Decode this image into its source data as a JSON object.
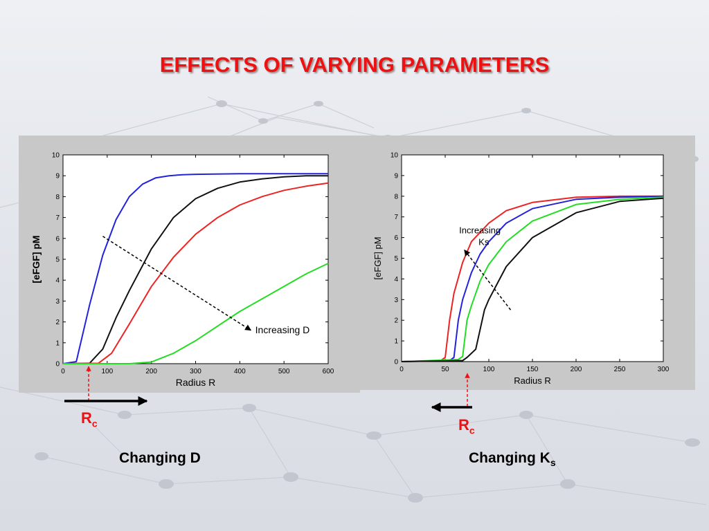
{
  "slide": {
    "title": "EFFECTS OF VARYING PARAMETERS",
    "colors": {
      "title": "#ee1111",
      "rc_label": "#ee1111",
      "panel_bg": "#c8c8c8"
    },
    "rc_left": {
      "main": "R",
      "sub": "c"
    },
    "rc_right": {
      "main": "R",
      "sub": "c"
    },
    "caption_left": "Changing D",
    "caption_right": {
      "main": "Changing K",
      "sub": "s"
    }
  },
  "chart_data": [
    {
      "type": "line",
      "xlabel": "Radius R",
      "ylabel": "[eFGF] pM",
      "xlim": [
        0,
        600
      ],
      "ylim": [
        0,
        10
      ],
      "xticks": [
        0,
        100,
        200,
        300,
        400,
        500,
        600
      ],
      "yticks": [
        0,
        1,
        2,
        3,
        4,
        5,
        6,
        7,
        8,
        9,
        10
      ],
      "grid": false,
      "annotation": {
        "text": "Increasing D",
        "from": [
          90,
          6.1
        ],
        "to": [
          425,
          1.6
        ],
        "text_at": [
          435,
          1.45
        ]
      },
      "series": [
        {
          "color": "#2222dd",
          "x": [
            0,
            30,
            60,
            90,
            120,
            150,
            180,
            210,
            240,
            270,
            300,
            400,
            500,
            600
          ],
          "y": [
            0,
            0.1,
            2.8,
            5.2,
            6.9,
            8.0,
            8.6,
            8.9,
            9.0,
            9.05,
            9.07,
            9.1,
            9.1,
            9.1
          ]
        },
        {
          "color": "#111111",
          "x": [
            0,
            60,
            90,
            120,
            150,
            200,
            250,
            300,
            350,
            400,
            450,
            500,
            550,
            600
          ],
          "y": [
            0,
            0.02,
            0.7,
            2.2,
            3.5,
            5.5,
            7.0,
            7.9,
            8.4,
            8.7,
            8.85,
            8.95,
            9.0,
            9.0
          ]
        },
        {
          "color": "#ee2222",
          "x": [
            0,
            80,
            110,
            150,
            200,
            250,
            300,
            350,
            400,
            450,
            500,
            550,
            600
          ],
          "y": [
            0,
            0.02,
            0.5,
            1.9,
            3.7,
            5.1,
            6.2,
            7.0,
            7.6,
            8.0,
            8.3,
            8.5,
            8.65
          ]
        },
        {
          "color": "#22dd22",
          "x": [
            0,
            150,
            200,
            250,
            300,
            350,
            400,
            450,
            500,
            550,
            600
          ],
          "y": [
            0,
            0,
            0.08,
            0.5,
            1.1,
            1.8,
            2.5,
            3.1,
            3.7,
            4.3,
            4.8
          ]
        }
      ]
    },
    {
      "type": "line",
      "xlabel": "Radius R",
      "ylabel": "[eFGF] pM",
      "xlim": [
        0,
        300
      ],
      "ylim": [
        0,
        10
      ],
      "xticks": [
        0,
        50,
        100,
        150,
        200,
        250,
        300
      ],
      "yticks": [
        0,
        1,
        2,
        3,
        4,
        5,
        6,
        7,
        8,
        9,
        10
      ],
      "grid": false,
      "annotation": {
        "text": "Increasing\nKs",
        "from": [
          125,
          2.5
        ],
        "to": [
          72,
          5.4
        ],
        "text_at": [
          66,
          6.2
        ]
      },
      "series": [
        {
          "color": "#ee2222",
          "x": [
            0,
            45,
            50,
            55,
            60,
            70,
            80,
            100,
            120,
            150,
            200,
            250,
            300
          ],
          "y": [
            0,
            0.05,
            0.2,
            2.0,
            3.3,
            4.8,
            5.8,
            6.7,
            7.3,
            7.7,
            7.95,
            8.0,
            8.0
          ]
        },
        {
          "color": "#2222dd",
          "x": [
            0,
            55,
            60,
            65,
            70,
            80,
            90,
            100,
            120,
            150,
            200,
            250,
            300
          ],
          "y": [
            0,
            0.05,
            0.2,
            2.0,
            3.0,
            4.3,
            5.2,
            5.8,
            6.7,
            7.4,
            7.85,
            7.95,
            8.0
          ]
        },
        {
          "color": "#22dd22",
          "x": [
            0,
            65,
            70,
            75,
            80,
            90,
            100,
            120,
            150,
            200,
            250,
            300
          ],
          "y": [
            0,
            0.1,
            0.25,
            2.0,
            2.7,
            3.9,
            4.7,
            5.8,
            6.8,
            7.6,
            7.85,
            7.95
          ]
        },
        {
          "color": "#111111",
          "x": [
            0,
            70,
            75,
            85,
            95,
            100,
            110,
            120,
            150,
            200,
            250,
            300
          ],
          "y": [
            0,
            0.05,
            0.2,
            0.6,
            2.5,
            3.0,
            3.8,
            4.6,
            6.0,
            7.2,
            7.75,
            7.9
          ]
        }
      ]
    }
  ]
}
